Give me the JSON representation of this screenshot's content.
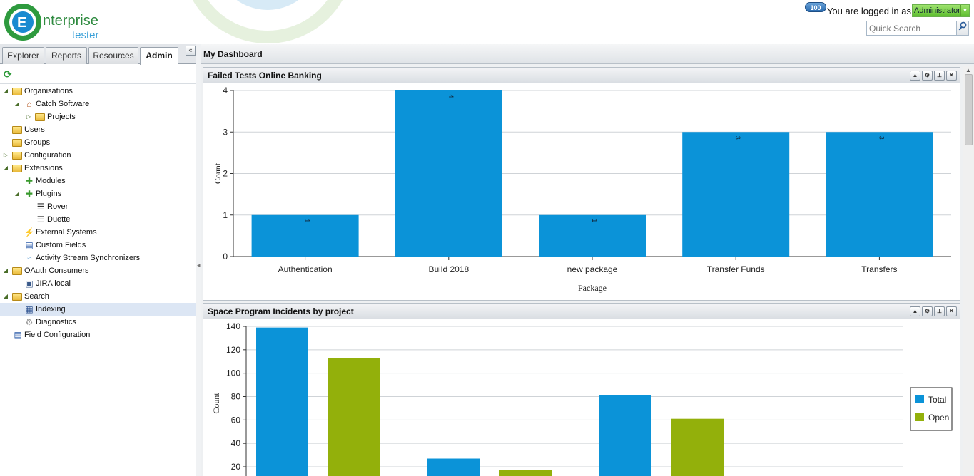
{
  "app": {
    "logo_word1": "nterprise",
    "logo_word2": "tester",
    "notification_count": "100",
    "logged_in_text": "You are logged in as",
    "user": "Administrator",
    "quick_search_placeholder": "Quick Search"
  },
  "tabs": [
    {
      "label": "Explorer",
      "active": false
    },
    {
      "label": "Reports",
      "active": false
    },
    {
      "label": "Resources",
      "active": false
    },
    {
      "label": "Admin",
      "active": true
    }
  ],
  "tree": [
    {
      "label": "Organisations",
      "level": 0,
      "expander": "open",
      "icon": "folder-edit-icon"
    },
    {
      "label": "Catch Software",
      "level": 1,
      "expander": "open",
      "icon": "house-icon"
    },
    {
      "label": "Projects",
      "level": 2,
      "expander": "closed",
      "icon": "folder-icon"
    },
    {
      "label": "Users",
      "level": 0,
      "expander": "none",
      "icon": "users-folder-icon"
    },
    {
      "label": "Groups",
      "level": 0,
      "expander": "none",
      "icon": "groups-folder-icon"
    },
    {
      "label": "Configuration",
      "level": 0,
      "expander": "closed",
      "icon": "config-folder-icon"
    },
    {
      "label": "Extensions",
      "level": 0,
      "expander": "open",
      "icon": "extensions-folder-icon"
    },
    {
      "label": "Modules",
      "level": 1,
      "expander": "none",
      "icon": "puzzle-icon"
    },
    {
      "label": "Plugins",
      "level": 1,
      "expander": "open",
      "icon": "puzzle-icon"
    },
    {
      "label": "Rover",
      "level": 2,
      "expander": "none",
      "icon": "document-icon"
    },
    {
      "label": "Duette",
      "level": 2,
      "expander": "none",
      "icon": "document-icon"
    },
    {
      "label": "External Systems",
      "level": 1,
      "expander": "none",
      "icon": "plug-icon"
    },
    {
      "label": "Custom Fields",
      "level": 1,
      "expander": "none",
      "icon": "form-icon"
    },
    {
      "label": "Activity Stream Synchronizers",
      "level": 1,
      "expander": "none",
      "icon": "stream-icon"
    },
    {
      "label": "OAuth Consumers",
      "level": 0,
      "expander": "open",
      "icon": "folder-icon"
    },
    {
      "label": "JIRA local",
      "level": 1,
      "expander": "none",
      "icon": "monitor-icon"
    },
    {
      "label": "Search",
      "level": 0,
      "expander": "open",
      "icon": "search-folder-icon"
    },
    {
      "label": "Indexing",
      "level": 1,
      "expander": "none",
      "icon": "index-icon",
      "selected": true
    },
    {
      "label": "Diagnostics",
      "level": 1,
      "expander": "none",
      "icon": "gear-icon"
    },
    {
      "label": "Field Configuration",
      "level": 0,
      "expander": "none",
      "icon": "form-icon"
    }
  ],
  "main": {
    "title": "My Dashboard"
  },
  "portlets": [
    {
      "title": "Failed Tests Online Banking"
    },
    {
      "title": "Space Program Incidents by project"
    }
  ],
  "chart_data": [
    {
      "type": "bar",
      "categories": [
        "Authentication",
        "Build 2018",
        "new package",
        "Transfer Funds",
        "Transfers"
      ],
      "values": [
        1,
        4,
        1,
        3,
        3
      ],
      "data_labels": [
        "1",
        "4",
        "1",
        "3",
        "3"
      ],
      "title": "",
      "xlabel": "Package",
      "ylabel": "Count",
      "ylim": [
        0,
        4
      ],
      "yticks": [
        "0",
        "1",
        "2",
        "3",
        "4"
      ],
      "grid": true,
      "color": "#0b93d8"
    },
    {
      "type": "bar",
      "series": [
        {
          "name": "Total",
          "values": [
            139,
            27,
            81
          ],
          "color": "#0b93d8"
        },
        {
          "name": "Open",
          "values": [
            113,
            17,
            61
          ],
          "color": "#93b00b"
        }
      ],
      "ylabel": "Count",
      "ylim": [
        0,
        140
      ],
      "yticks_visible": [
        "20",
        "40",
        "60",
        "80",
        "100",
        "120",
        "140"
      ],
      "grid": true,
      "legend": "right"
    }
  ]
}
